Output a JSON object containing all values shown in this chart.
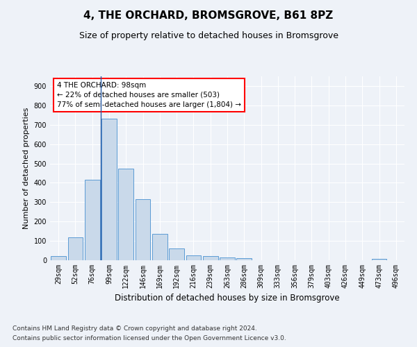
{
  "title1": "4, THE ORCHARD, BROMSGROVE, B61 8PZ",
  "title2": "Size of property relative to detached houses in Bromsgrove",
  "xlabel": "Distribution of detached houses by size in Bromsgrove",
  "ylabel": "Number of detached properties",
  "categories": [
    "29sqm",
    "52sqm",
    "76sqm",
    "99sqm",
    "122sqm",
    "146sqm",
    "169sqm",
    "192sqm",
    "216sqm",
    "239sqm",
    "263sqm",
    "286sqm",
    "309sqm",
    "333sqm",
    "356sqm",
    "379sqm",
    "403sqm",
    "426sqm",
    "449sqm",
    "473sqm",
    "496sqm"
  ],
  "values": [
    20,
    120,
    415,
    730,
    475,
    315,
    135,
    60,
    25,
    20,
    15,
    10,
    0,
    0,
    0,
    0,
    0,
    0,
    0,
    8,
    0
  ],
  "bar_color": "#c9d9ea",
  "bar_edge_color": "#5b9bd5",
  "property_line_x": 2.5,
  "annotation_text": "4 THE ORCHARD: 98sqm\n← 22% of detached houses are smaller (503)\n77% of semi-detached houses are larger (1,804) →",
  "annotation_box_color": "white",
  "annotation_box_edge_color": "red",
  "property_line_color": "#2b5ea7",
  "ylim": [
    0,
    950
  ],
  "yticks": [
    0,
    100,
    200,
    300,
    400,
    500,
    600,
    700,
    800,
    900
  ],
  "footer1": "Contains HM Land Registry data © Crown copyright and database right 2024.",
  "footer2": "Contains public sector information licensed under the Open Government Licence v3.0.",
  "bg_color": "#eef2f8",
  "plot_bg_color": "#eef2f8",
  "grid_color": "white",
  "title1_fontsize": 11,
  "title2_fontsize": 9,
  "xlabel_fontsize": 8.5,
  "ylabel_fontsize": 8,
  "tick_fontsize": 7,
  "footer_fontsize": 6.5
}
